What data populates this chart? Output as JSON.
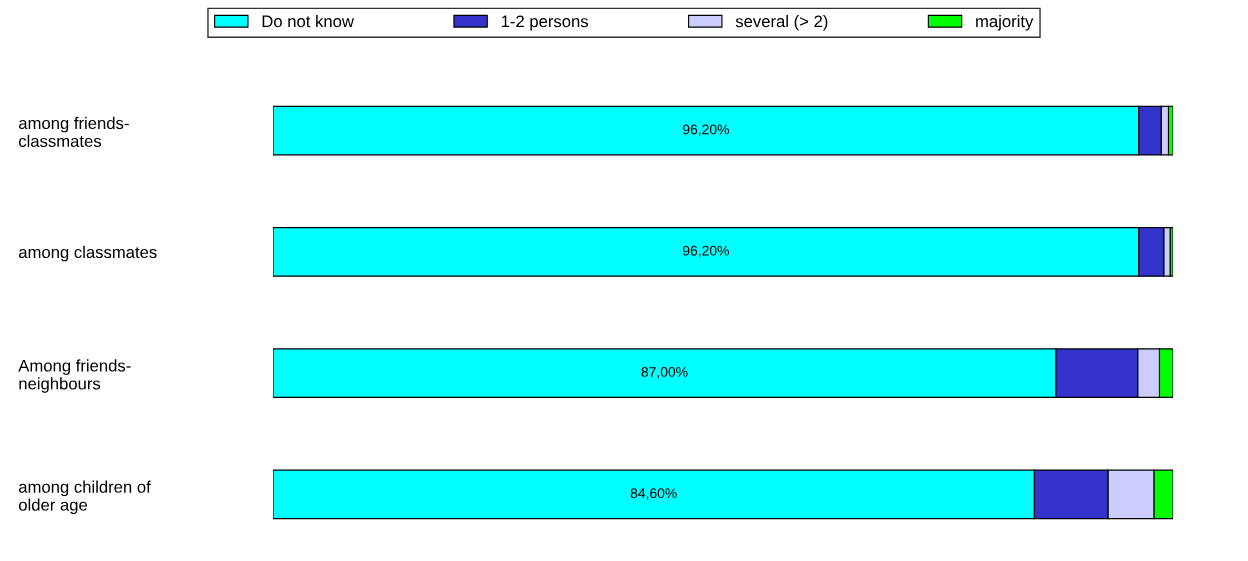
{
  "chart_data": {
    "type": "bar",
    "orientation": "horizontal",
    "stacked": true,
    "legend": "top",
    "tick_labels": "y",
    "xlim": [
      0,
      100
    ],
    "categories": [
      "among friends-\nclassmates",
      "among classmates",
      "Among friends-\nneighbours",
      "among children of\nolder age"
    ],
    "series": [
      {
        "name": "Do not know",
        "color": "#00ffff",
        "values": [
          96.2,
          96.2,
          87.0,
          84.6
        ],
        "value_labels": [
          "96,20%",
          "96,20%",
          "87,00%",
          "84,60%"
        ]
      },
      {
        "name": "1-2 persons",
        "color": "#3333cc",
        "values": [
          2.5,
          2.8,
          9.1,
          8.2
        ]
      },
      {
        "name": "several (> 2)",
        "color": "#ccccff",
        "values": [
          0.8,
          0.7,
          2.4,
          5.1
        ]
      },
      {
        "name": "majority",
        "color": "#00ff00",
        "values": [
          0.5,
          0.3,
          1.5,
          2.1
        ]
      }
    ]
  }
}
